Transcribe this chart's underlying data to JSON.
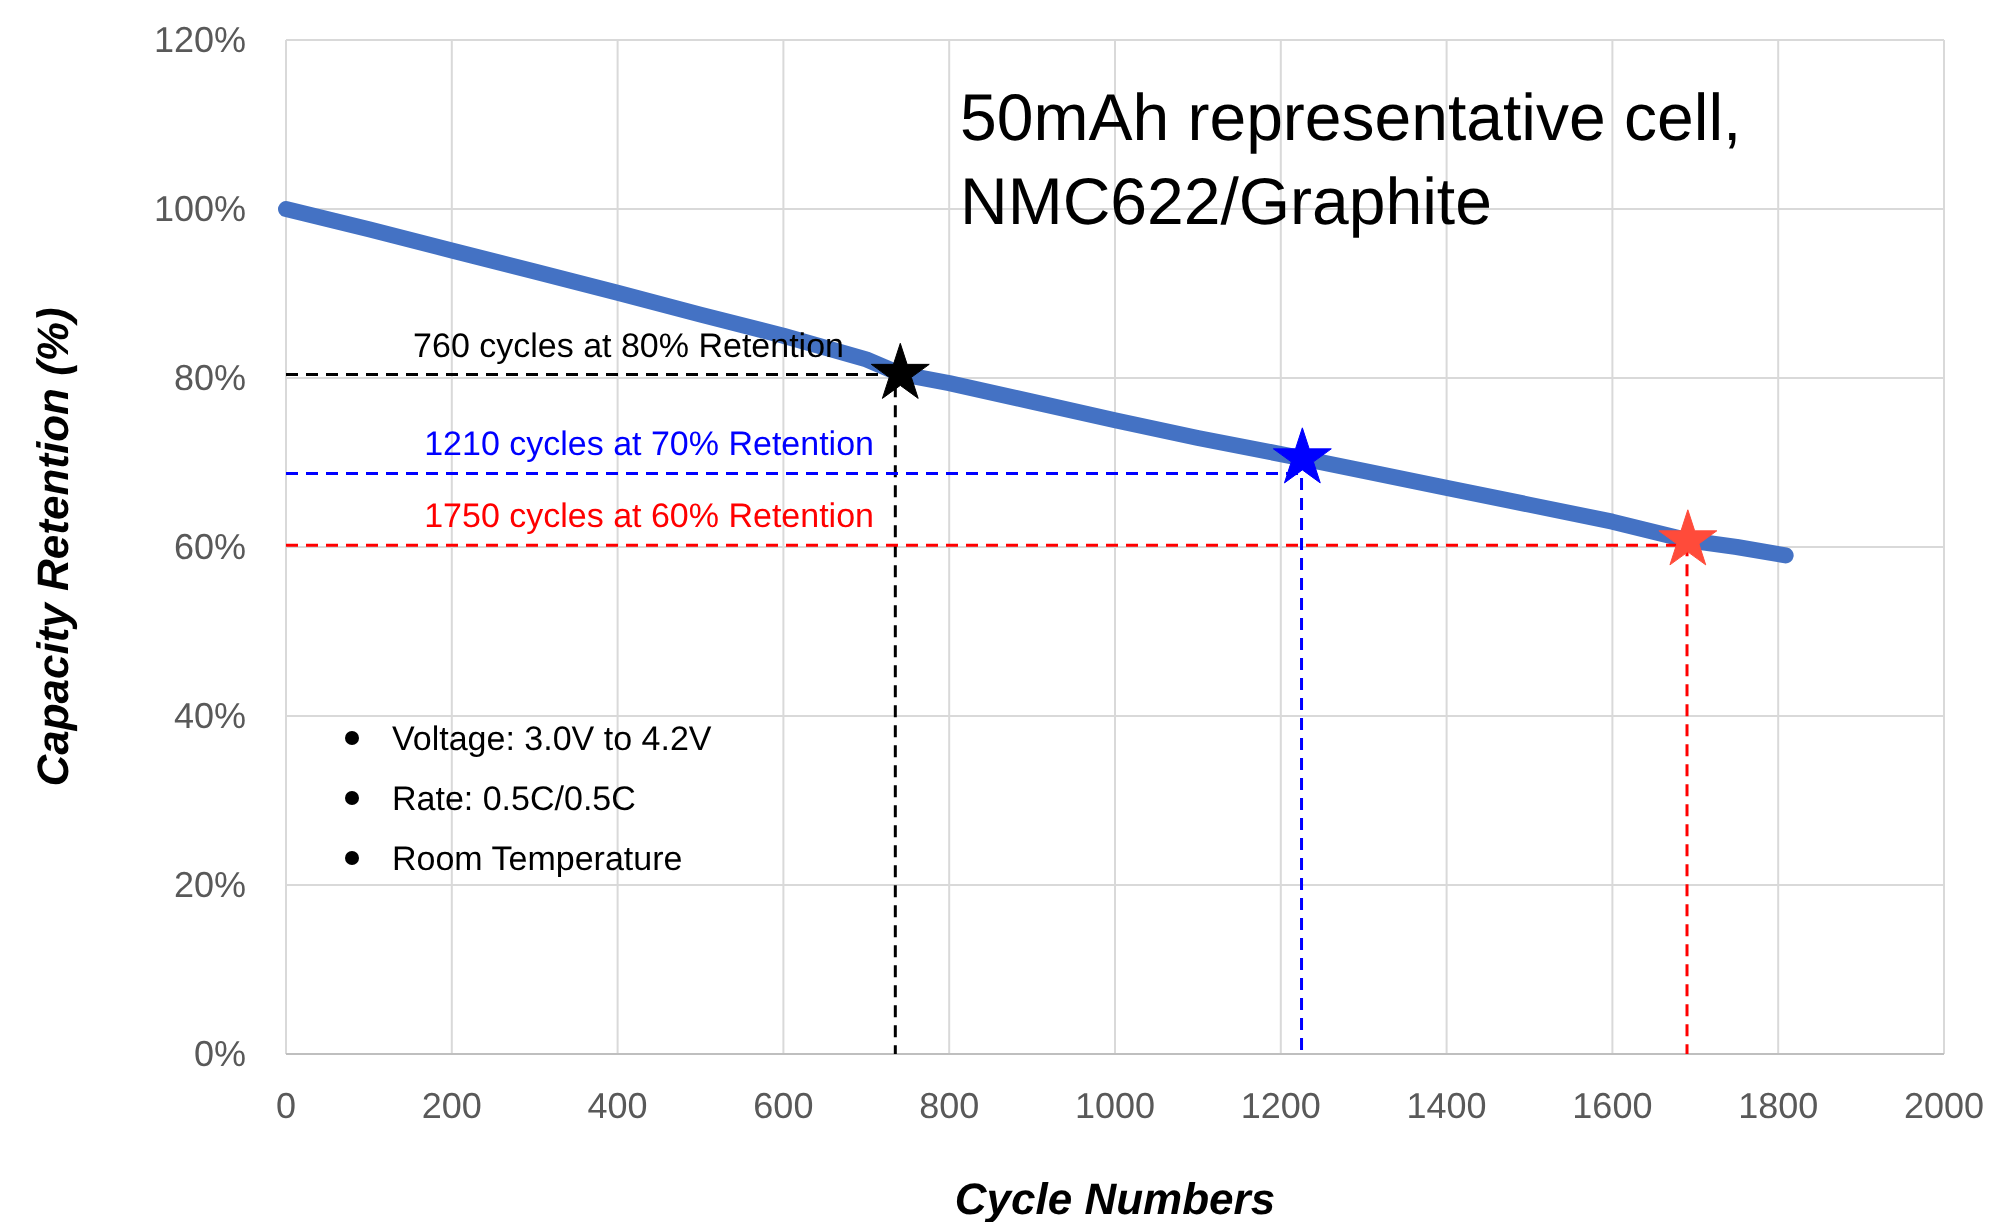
{
  "chart_data": {
    "type": "line",
    "title": "50mAh representative cell, NMC622/Graphite",
    "xlabel": "Cycle Numbers",
    "ylabel": "Capacity Retention (%)",
    "xlim": [
      0,
      2000
    ],
    "ylim": [
      0,
      120
    ],
    "xticks": [
      0,
      200,
      400,
      600,
      800,
      1000,
      1200,
      1400,
      1600,
      1800,
      2000
    ],
    "yticks": [
      {
        "value": 0,
        "label": "0%"
      },
      {
        "value": 20,
        "label": "20%"
      },
      {
        "value": 40,
        "label": "40%"
      },
      {
        "value": 60,
        "label": "60%"
      },
      {
        "value": 80,
        "label": "80%"
      },
      {
        "value": 100,
        "label": "100%"
      },
      {
        "value": 120,
        "label": "120%"
      }
    ],
    "grid": true,
    "annotations": [
      "760 cycles at 80% Retention",
      "1210 cycles at 70% Retention",
      "1750 cycles at 60% Retention",
      "Voltage: 3.0V to 4.2V",
      "Rate: 0.5C/0.5C",
      "Room Temperature"
    ],
    "series": [
      {
        "color": "#4472c4",
        "x": [
          0,
          100,
          200,
          300,
          400,
          500,
          600,
          700,
          741,
          800,
          900,
          1000,
          1100,
          1226,
          1300,
          1400,
          1500,
          1600,
          1691,
          1750,
          1809
        ],
        "values": [
          100,
          97.6,
          95.1,
          92.6,
          90.1,
          87.5,
          85,
          82.2,
          80.5,
          79.4,
          77.2,
          75,
          72.9,
          70.5,
          69,
          67,
          65,
          63,
          60.8,
          60,
          59
        ]
      },
      {
        "type": "line",
        "line_style": "dashed",
        "color": "#000000",
        "x": [
          0,
          735,
          735
        ],
        "values": [
          80.4,
          80.4,
          0
        ]
      },
      {
        "type": "line",
        "line_style": "dashed",
        "color": "#0000ff",
        "x": [
          0,
          1225,
          1225
        ],
        "values": [
          68.7,
          68.7,
          0
        ]
      },
      {
        "type": "line",
        "line_style": "dashed",
        "color": "#ff0000",
        "x": [
          0,
          1690,
          1690
        ],
        "values": [
          60.2,
          60.2,
          0
        ]
      },
      {
        "type": "scatter",
        "marker": "star",
        "color": "#000000",
        "x": [
          741
        ],
        "values": [
          80.5
        ]
      },
      {
        "type": "scatter",
        "marker": "star",
        "color": "#0000ff",
        "x": [
          1226
        ],
        "values": [
          70.5
        ]
      },
      {
        "type": "scatter",
        "marker": "star",
        "color": "#ff4b3a",
        "x": [
          1691
        ],
        "values": [
          60.8
        ]
      }
    ]
  }
}
